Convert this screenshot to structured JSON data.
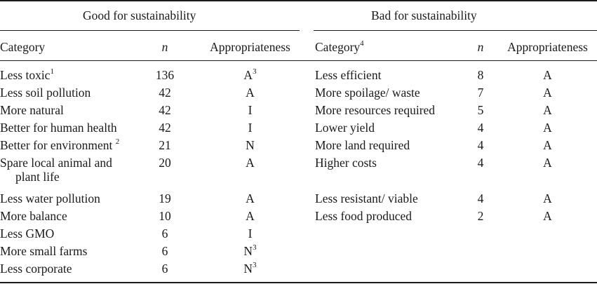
{
  "headers": {
    "good_group": "Good for sustainability",
    "bad_group": "Bad for sustainability",
    "category": "Category",
    "n": "n",
    "appropriateness": "Appropriateness",
    "bad_category_sup": "4"
  },
  "good": [
    {
      "category": "Less toxic",
      "cat_sup": "1",
      "n": "136",
      "app": "A",
      "app_sup": "3"
    },
    {
      "category": "Less soil pollution",
      "n": "42",
      "app": "A"
    },
    {
      "category": "More natural",
      "n": "42",
      "app": "I"
    },
    {
      "category": "Better for human health",
      "n": "42",
      "app": "I"
    },
    {
      "category": "Better for environment ",
      "cat_sup": "2",
      "n": "21",
      "app": "N"
    },
    {
      "category": "Spare local animal and",
      "category_line2": "plant life",
      "n": "20",
      "app": "A"
    },
    {
      "category": "Less water pollution",
      "n": "19",
      "app": "A"
    },
    {
      "category": "More balance",
      "n": "10",
      "app": "A"
    },
    {
      "category": "Less GMO",
      "n": "6",
      "app": "I"
    },
    {
      "category": "More small farms",
      "n": "6",
      "app": "N",
      "app_sup": "3"
    },
    {
      "category": "Less corporate",
      "n": "6",
      "app": "N",
      "app_sup": "3"
    }
  ],
  "bad": [
    {
      "category": "Less efficient",
      "n": "8",
      "app": "A"
    },
    {
      "category": "More spoilage/ waste",
      "n": "7",
      "app": "A"
    },
    {
      "category": "More resources required",
      "n": "5",
      "app": "A"
    },
    {
      "category": "Lower yield",
      "n": "4",
      "app": "A"
    },
    {
      "category": "More land required",
      "n": "4",
      "app": "A"
    },
    {
      "category": "Higher costs",
      "n": "4",
      "app": "A"
    },
    {
      "category": "Less resistant/ viable",
      "n": "4",
      "app": "A"
    },
    {
      "category": "Less food produced",
      "n": "2",
      "app": "A"
    }
  ]
}
